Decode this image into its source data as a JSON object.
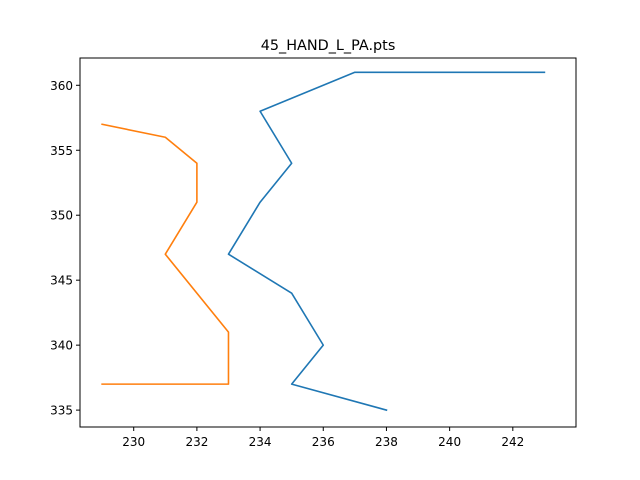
{
  "chart_data": {
    "type": "line",
    "title": "45_HAND_L_PA.pts",
    "xlabel": "",
    "ylabel": "",
    "xlim": [
      228.3,
      244.0
    ],
    "ylim": [
      333.7,
      362.1
    ],
    "x_ticks": [
      230,
      232,
      234,
      236,
      238,
      240,
      242
    ],
    "y_ticks": [
      335,
      340,
      345,
      350,
      355,
      360
    ],
    "grid": false,
    "series": [
      {
        "color": "#1f77b4",
        "x": [
          243,
          237,
          234,
          235,
          234,
          233,
          235,
          236,
          235,
          238
        ],
        "y": [
          361,
          361,
          358,
          354,
          351,
          347,
          344,
          340,
          337,
          335
        ]
      },
      {
        "color": "#ff7f0e",
        "x": [
          229,
          231,
          232,
          232,
          231,
          233,
          233,
          229
        ],
        "y": [
          357,
          356,
          354,
          351,
          347,
          341,
          337,
          337
        ]
      }
    ]
  }
}
